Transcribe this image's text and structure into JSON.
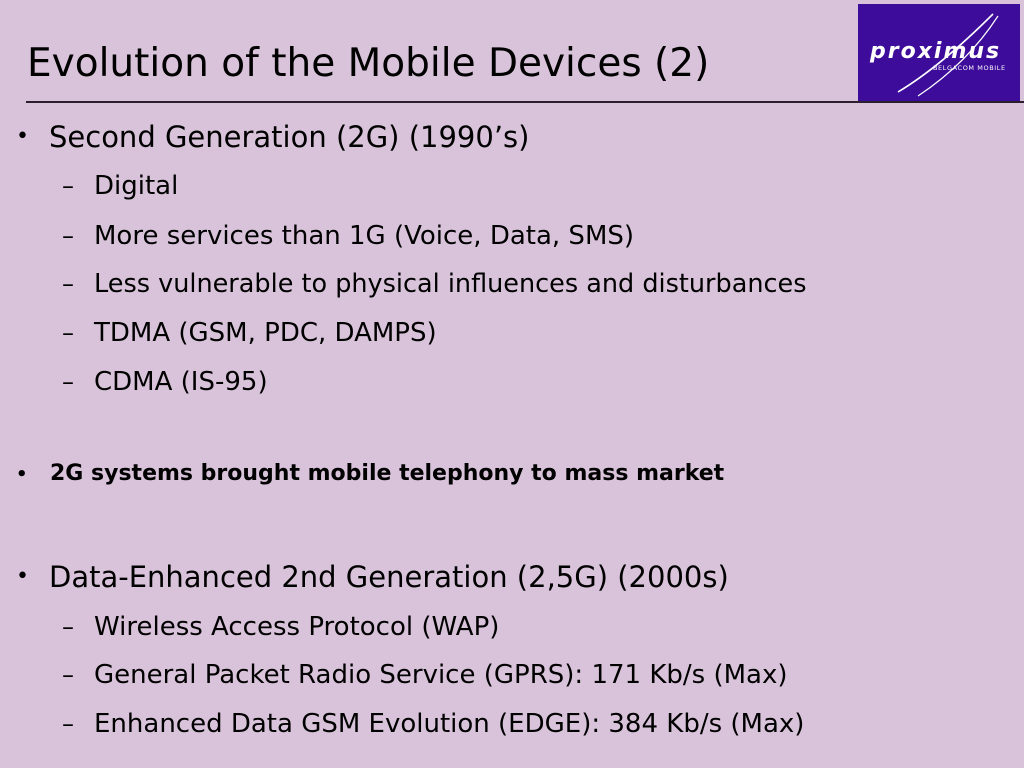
{
  "slide": {
    "title": "Evolution of the Mobile Devices (2)"
  },
  "logo": {
    "word": "proximus",
    "sub": "BELGACOM MOBILE",
    "bg_color": "#3d0c9a"
  },
  "bullet_glyph": "•",
  "dash_glyph": "–",
  "sections": [
    {
      "heading": "Second Generation (2G)  (1990’s)",
      "items": [
        "Digital",
        "More services than 1G (Voice, Data, SMS)",
        "Less vulnerable to physical influences and disturbances",
        "TDMA (GSM, PDC, DAMPS)",
        "CDMA (IS-95)"
      ]
    },
    {
      "heading": "2G systems brought mobile telephony to mass market",
      "items": []
    },
    {
      "heading": "Data-Enhanced 2nd Generation (2,5G) (2000s)",
      "items": [
        "Wireless Access Protocol (WAP)",
        "General Packet Radio Service (GPRS): 171 Kb/s (Max)",
        "Enhanced Data GSM Evolution  (EDGE): 384 Kb/s (Max)"
      ]
    }
  ]
}
